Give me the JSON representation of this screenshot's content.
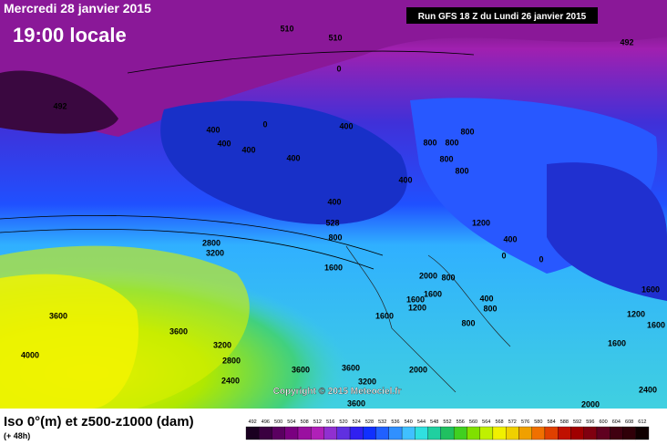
{
  "header": {
    "date": "Mercredi 28 janvier 2015",
    "time": "19:00 locale",
    "run": "Run GFS 18 Z du Lundi 26 janvier 2015"
  },
  "map": {
    "labels": [
      "510",
      "510",
      "492",
      "492",
      "0",
      "0",
      "400",
      "400",
      "400",
      "400",
      "400",
      "400",
      "400",
      "800",
      "800",
      "800",
      "800",
      "800",
      "528",
      "800",
      "1200",
      "400",
      "0",
      "0",
      "2800",
      "3200",
      "1600",
      "2000",
      "1600",
      "1600",
      "1200",
      "800",
      "400",
      "800",
      "800",
      "1600",
      "3600",
      "3600",
      "3200",
      "2800",
      "2400",
      "3600",
      "3600",
      "3200",
      "3600",
      "2000",
      "4000",
      "1600",
      "1200",
      "1600",
      "1600",
      "2000",
      "2400"
    ],
    "copyright": "Copyright © 2015 Meteociel.fr"
  },
  "footer": {
    "title": "Iso 0°(m) et z500-z1000 (dam)",
    "lead": "(+ 48h)"
  },
  "legend": {
    "labels": [
      "492",
      "496",
      "500",
      "504",
      "508",
      "512",
      "516",
      "520",
      "524",
      "528",
      "532",
      "536",
      "540",
      "544",
      "548",
      "552",
      "556",
      "560",
      "564",
      "568",
      "572",
      "576",
      "580",
      "584",
      "588",
      "592",
      "596",
      "600",
      "604",
      "608",
      "612"
    ],
    "colors": [
      "#1a0020",
      "#3a0040",
      "#5a0060",
      "#7a0080",
      "#9a10a0",
      "#b020b8",
      "#9030d0",
      "#6030e0",
      "#3020f0",
      "#1030ff",
      "#2060ff",
      "#3090ff",
      "#40c0ff",
      "#30e0e0",
      "#20d0a0",
      "#20c060",
      "#40d020",
      "#80e000",
      "#c0f000",
      "#f0f000",
      "#f0d000",
      "#f0a000",
      "#f07000",
      "#e04000",
      "#c01000",
      "#a00000",
      "#800010",
      "#600020",
      "#400010",
      "#300008",
      "#100000"
    ]
  }
}
